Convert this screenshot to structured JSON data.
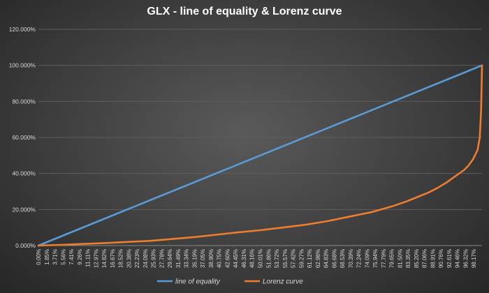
{
  "chart_data": {
    "type": "line",
    "title": "GLX - line of equality & Lorenz curve",
    "xlabel": "",
    "ylabel": "",
    "ylim": [
      0,
      120
    ],
    "y_unit": "%",
    "y_ticks": [
      "0.000%",
      "20.000%",
      "40.000%",
      "60.000%",
      "80.000%",
      "100.000%",
      "120.000%"
    ],
    "x_ticks": [
      "0.00%",
      "1.85%",
      "3.71%",
      "5.56%",
      "7.41%",
      "9.26%",
      "11.11%",
      "12.97%",
      "14.82%",
      "16.67%",
      "18.52%",
      "20.38%",
      "22.23%",
      "24.08%",
      "25.93%",
      "27.78%",
      "29.64%",
      "31.49%",
      "33.34%",
      "35.19%",
      "37.05%",
      "38.90%",
      "40.75%",
      "42.60%",
      "44.45%",
      "46.31%",
      "48.16%",
      "50.01%",
      "51.86%",
      "53.72%",
      "55.57%",
      "57.42%",
      "59.27%",
      "61.12%",
      "62.98%",
      "64.83%",
      "66.68%",
      "68.53%",
      "70.39%",
      "72.24%",
      "74.09%",
      "75.94%",
      "77.79%",
      "79.65%",
      "81.50%",
      "83.35%",
      "85.20%",
      "87.06%",
      "88.91%",
      "90.76%",
      "92.61%",
      "94.46%",
      "96.32%",
      "98.17%"
    ],
    "grid": true,
    "legend_position": "bottom",
    "series": [
      {
        "name": "line of equality",
        "color": "#5b9bd5",
        "x": [
          0,
          100
        ],
        "y": [
          0,
          100
        ]
      },
      {
        "name": "Lorenz curve",
        "color": "#ed7d31",
        "x": [
          0,
          5,
          10,
          15,
          20,
          25,
          30,
          35,
          40,
          45,
          50,
          55,
          60,
          65,
          70,
          75,
          80,
          83,
          85,
          88,
          90,
          92,
          94,
          96,
          97,
          98,
          99,
          99.5,
          99.8,
          100
        ],
        "y": [
          0,
          0.4,
          0.9,
          1.4,
          2,
          2.6,
          3.6,
          4.7,
          6,
          7.3,
          8.5,
          10,
          11.5,
          13.5,
          16,
          18.5,
          22,
          24.5,
          26.5,
          29.5,
          32,
          35,
          38.5,
          42,
          44.5,
          48,
          53,
          60,
          75,
          100
        ]
      }
    ]
  }
}
